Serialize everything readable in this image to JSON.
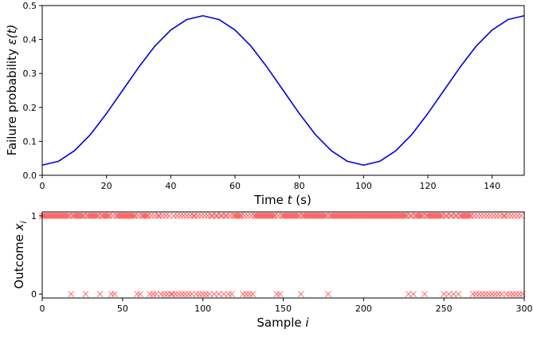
{
  "chart_data": [
    {
      "type": "line",
      "xlabel_prefix": "Time ",
      "xlabel_var": "t",
      "xlabel_suffix": " (s)",
      "ylabel_prefix": "Failure probability ",
      "ylabel_var": "ε(t)",
      "xlim": [
        0,
        150
      ],
      "ylim": [
        0,
        0.5
      ],
      "xticks": [
        0,
        20,
        40,
        60,
        80,
        100,
        120,
        140
      ],
      "yticks": [
        0.0,
        0.1,
        0.2,
        0.3,
        0.4,
        0.5
      ],
      "ytick_labels": [
        "0.0",
        "0.1",
        "0.2",
        "0.3",
        "0.4",
        "0.5"
      ],
      "series": [
        {
          "color": "#0000dd",
          "x": [
            0,
            5,
            10,
            15,
            20,
            25,
            30,
            35,
            40,
            45,
            50,
            55,
            60,
            65,
            70,
            75,
            80,
            85,
            90,
            95,
            100,
            105,
            110,
            115,
            120,
            125,
            130,
            135,
            140,
            145,
            150
          ],
          "y": [
            0.03,
            0.041,
            0.072,
            0.12,
            0.182,
            0.25,
            0.318,
            0.38,
            0.428,
            0.459,
            0.47,
            0.459,
            0.428,
            0.38,
            0.318,
            0.25,
            0.182,
            0.12,
            0.072,
            0.041,
            0.03,
            0.041,
            0.072,
            0.12,
            0.182,
            0.25,
            0.318,
            0.38,
            0.428,
            0.459,
            0.47
          ]
        }
      ]
    },
    {
      "type": "scatter",
      "xlabel_prefix": "Sample ",
      "xlabel_var": "i",
      "ylabel_prefix": "Outcome ",
      "ylabel_var": "x",
      "ylabel_sub": "i",
      "xlim": [
        0,
        300
      ],
      "ylim": [
        -0.05,
        1.05
      ],
      "xticks": [
        0,
        50,
        100,
        150,
        200,
        250,
        300
      ],
      "yticks": [
        0,
        1
      ],
      "marker": "x",
      "marker_color": "#ff3333",
      "zero_samples": [
        18,
        27,
        36,
        43,
        45,
        59,
        61,
        67,
        69,
        71,
        74,
        76,
        78,
        80,
        81,
        83,
        85,
        87,
        89,
        91,
        93,
        96,
        98,
        100,
        102,
        104,
        107,
        110,
        113,
        116,
        118,
        125,
        127,
        129,
        131,
        146,
        148,
        161,
        178,
        228,
        231,
        238,
        250,
        253,
        256,
        259,
        268,
        270,
        272,
        274,
        276,
        278,
        280,
        282,
        284,
        286,
        289,
        291,
        293,
        295,
        297,
        299
      ]
    }
  ]
}
